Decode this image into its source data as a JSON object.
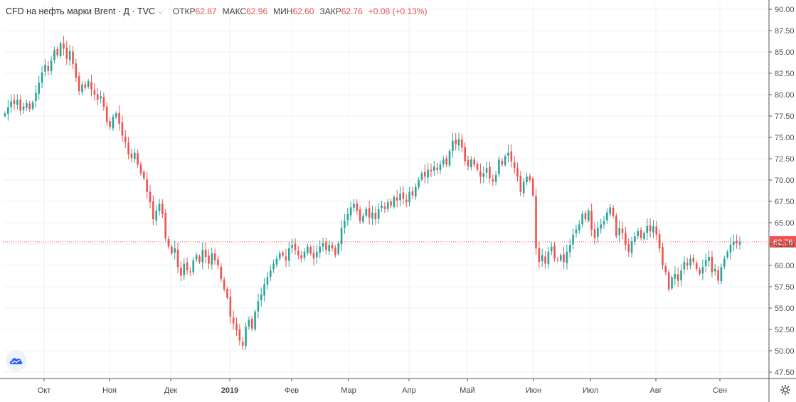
{
  "header": {
    "symbol": "CFD на нефть марки Brent · Д · TVC",
    "open_label": "ОТКР",
    "open": "62.87",
    "high_label": "МАКС",
    "high": "62.96",
    "low_label": "МИН",
    "low": "62.60",
    "close_label": "ЗАКР",
    "close": "62.76",
    "change": "+0.08 (+0.13%)"
  },
  "colors": {
    "up": "#26a69a",
    "down": "#ef5350",
    "price_line": "#ef5350",
    "grid": "#eef0f3"
  },
  "chart_data": {
    "type": "candlestick",
    "title": "CFD на нефть марки Brent",
    "timeframe": "Д",
    "source": "TVC",
    "ylim": [
      47.5,
      90.0
    ],
    "y_ticks": [
      "90.00",
      "87.50",
      "85.00",
      "82.50",
      "80.00",
      "77.50",
      "75.00",
      "72.50",
      "70.00",
      "67.50",
      "65.00",
      "62.50",
      "60.00",
      "57.50",
      "55.00",
      "52.50",
      "50.00",
      "47.50"
    ],
    "x_ticks": [
      "Окт",
      "Ноя",
      "Дек",
      "2019",
      "Фев",
      "Мар",
      "Апр",
      "Май",
      "Июн",
      "Июл",
      "Авг",
      "Сен"
    ],
    "last_price": "62.76",
    "grid": true,
    "close_series": [
      77.8,
      78.5,
      79.2,
      78.9,
      79.4,
      78.1,
      78.6,
      79.0,
      78.3,
      79.1,
      80.2,
      81.4,
      82.6,
      83.5,
      82.8,
      84.0,
      85.2,
      84.6,
      86.0,
      85.4,
      84.2,
      85.1,
      83.6,
      82.0,
      80.4,
      81.2,
      80.8,
      81.6,
      80.6,
      80.0,
      79.4,
      79.8,
      78.6,
      76.8,
      76.2,
      77.4,
      77.8,
      76.6,
      75.2,
      74.4,
      73.0,
      72.6,
      73.2,
      71.8,
      70.8,
      70.2,
      68.6,
      67.4,
      65.4,
      66.4,
      67.2,
      66.0,
      63.2,
      62.2,
      61.4,
      62.0,
      59.8,
      58.8,
      60.2,
      59.4,
      59.2,
      60.6,
      61.2,
      60.4,
      61.8,
      61.0,
      60.2,
      61.4,
      60.6,
      60.0,
      58.4,
      57.2,
      56.2,
      54.0,
      53.2,
      52.4,
      51.2,
      50.6,
      52.8,
      53.6,
      52.6,
      54.6,
      55.8,
      56.6,
      57.8,
      58.6,
      59.4,
      60.2,
      60.8,
      61.4,
      61.2,
      60.6,
      62.0,
      62.4,
      61.8,
      61.2,
      60.8,
      61.6,
      62.2,
      61.4,
      60.8,
      61.6,
      62.2,
      62.6,
      61.8,
      62.4,
      62.0,
      61.2,
      62.6,
      64.4,
      65.2,
      66.0,
      66.8,
      67.2,
      66.4,
      65.2,
      65.8,
      66.6,
      65.6,
      66.2,
      65.4,
      66.6,
      67.0,
      66.6,
      67.4,
      67.0,
      68.0,
      67.6,
      68.4,
      67.8,
      67.4,
      68.6,
      68.2,
      69.2,
      70.0,
      70.8,
      70.4,
      71.2,
      71.0,
      71.6,
      71.2,
      71.8,
      72.4,
      71.8,
      73.4,
      74.6,
      74.2,
      74.8,
      73.8,
      72.2,
      71.6,
      72.4,
      71.8,
      71.2,
      70.4,
      70.8,
      71.4,
      70.2,
      69.8,
      70.6,
      72.4,
      71.8,
      72.8,
      73.2,
      72.2,
      71.4,
      70.4,
      68.6,
      69.8,
      70.4,
      70.0,
      68.2,
      62.0,
      60.4,
      61.2,
      60.2,
      61.6,
      62.2,
      60.8,
      60.6,
      61.2,
      60.4,
      61.6,
      62.4,
      63.6,
      64.2,
      64.8,
      66.0,
      65.4,
      66.4,
      64.2,
      63.2,
      64.4,
      64.8,
      65.2,
      66.2,
      66.8,
      65.8,
      63.4,
      64.4,
      63.8,
      62.4,
      61.6,
      62.8,
      63.4,
      64.0,
      63.2,
      63.8,
      64.6,
      64.0,
      64.6,
      63.6,
      62.0,
      60.0,
      59.2,
      57.2,
      58.6,
      59.0,
      58.2,
      59.4,
      60.4,
      60.0,
      60.8,
      60.4,
      59.6,
      59.0,
      59.8,
      60.6,
      61.0,
      59.2,
      59.6,
      58.2,
      59.8,
      60.8,
      61.6,
      62.4,
      62.8,
      62.6,
      62.76
    ]
  },
  "logo_icon": "tradingview-cloud-icon",
  "settings_icon": "gear-icon"
}
